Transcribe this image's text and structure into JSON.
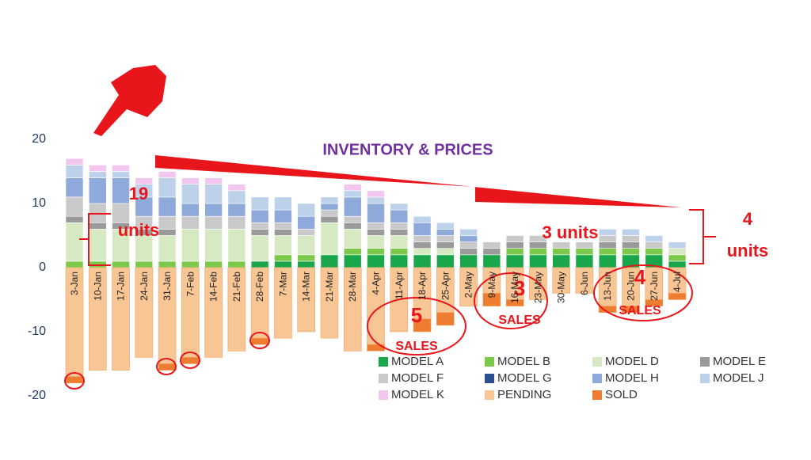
{
  "chart_data": {
    "type": "stacked-bar",
    "title": "INVENTORY & PRICES",
    "categories": [
      "3-Jan",
      "10-Jan",
      "17-Jan",
      "24-Jan",
      "31-Jan",
      "7-Feb",
      "14-Feb",
      "21-Feb",
      "28-Feb",
      "7-Mar",
      "14-Mar",
      "21-Mar",
      "28-Mar",
      "4-Apr",
      "11-Apr",
      "18-Apr",
      "25-Apr",
      "2-May",
      "9-May",
      "16-May",
      "23-May",
      "30-May",
      "6-Jun",
      "13-Jun",
      "20-Jun",
      "27-Jun",
      "4-Jul"
    ],
    "series": [
      {
        "name": "MODEL A",
        "color": "#1aa64a",
        "values": [
          0,
          0,
          0,
          0,
          0,
          0,
          0,
          0,
          1,
          1,
          1,
          2,
          2,
          2,
          2,
          2,
          2,
          2,
          2,
          2,
          2,
          2,
          2,
          2,
          2,
          2,
          1
        ]
      },
      {
        "name": "MODEL B",
        "color": "#7cc84a",
        "values": [
          1,
          1,
          1,
          1,
          1,
          1,
          1,
          1,
          0,
          1,
          1,
          0,
          1,
          1,
          1,
          0,
          0,
          0,
          0,
          1,
          1,
          1,
          1,
          1,
          1,
          1,
          1
        ]
      },
      {
        "name": "MODEL D",
        "color": "#d6e9c2",
        "values": [
          6,
          5,
          5,
          4,
          4,
          5,
          5,
          5,
          4,
          3,
          3,
          5,
          3,
          2,
          2,
          1,
          1,
          0,
          0,
          0,
          0,
          0,
          0,
          0,
          0,
          0,
          1
        ]
      },
      {
        "name": "MODEL E",
        "color": "#9a9a9a",
        "values": [
          1,
          1,
          1,
          1,
          1,
          0,
          0,
          0,
          1,
          1,
          0,
          1,
          1,
          1,
          1,
          1,
          1,
          1,
          1,
          1,
          1,
          0,
          0,
          1,
          1,
          0,
          0
        ]
      },
      {
        "name": "MODEL F",
        "color": "#c9c9c9",
        "values": [
          3,
          3,
          3,
          2,
          2,
          2,
          2,
          2,
          1,
          1,
          1,
          1,
          1,
          1,
          1,
          1,
          1,
          1,
          1,
          1,
          1,
          1,
          1,
          1,
          1,
          1,
          0
        ]
      },
      {
        "name": "MODEL G",
        "color": "#2e4f8f",
        "values": [
          0,
          0,
          0,
          0,
          0,
          0,
          0,
          0,
          0,
          0,
          0,
          0,
          0,
          0,
          0,
          0,
          0,
          0,
          0,
          0,
          0,
          0,
          0,
          0,
          0,
          0,
          0
        ]
      },
      {
        "name": "MODEL H",
        "color": "#8eaadb",
        "values": [
          3,
          4,
          4,
          3,
          3,
          2,
          2,
          2,
          2,
          2,
          2,
          1,
          3,
          3,
          2,
          2,
          1,
          1,
          0,
          0,
          0,
          0,
          0,
          0,
          0,
          0,
          0
        ]
      },
      {
        "name": "MODEL J",
        "color": "#bdd1ea",
        "values": [
          2,
          1,
          1,
          2,
          3,
          3,
          3,
          2,
          2,
          2,
          2,
          1,
          1,
          1,
          1,
          1,
          1,
          1,
          0,
          0,
          0,
          0,
          0,
          1,
          1,
          1,
          1
        ]
      },
      {
        "name": "MODEL K",
        "color": "#f3c6f0",
        "values": [
          1,
          1,
          1,
          1,
          1,
          1,
          1,
          1,
          0,
          0,
          0,
          0,
          1,
          1,
          0,
          0,
          0,
          0,
          0,
          0,
          0,
          0,
          0,
          0,
          0,
          0,
          0
        ]
      },
      {
        "name": "PENDING",
        "color": "#f8c595",
        "values": [
          -17,
          -16,
          -16,
          -14,
          -15,
          -14,
          -14,
          -13,
          -11,
          -11,
          -10,
          -11,
          -13,
          -12,
          -10,
          -8,
          -7,
          -6,
          -4,
          -5,
          -5,
          -4,
          -4,
          -6,
          -6,
          -5,
          -4
        ]
      },
      {
        "name": "SOLD",
        "color": "#ee7d31",
        "values": [
          -1,
          0,
          0,
          0,
          -1,
          -1,
          0,
          0,
          -1,
          0,
          0,
          0,
          0,
          -1,
          0,
          -2,
          -2,
          0,
          -2,
          -1,
          0,
          0,
          0,
          -1,
          -1,
          -1,
          -1
        ]
      }
    ],
    "ylim": [
      -20,
      20
    ],
    "yticks": [
      -20,
      -10,
      0,
      10,
      20
    ],
    "grid": false,
    "annotations": [
      "19",
      "units",
      "3 units",
      "4",
      "units",
      "5",
      "SALES",
      "3",
      "SALES",
      "4",
      "SALES"
    ]
  }
}
